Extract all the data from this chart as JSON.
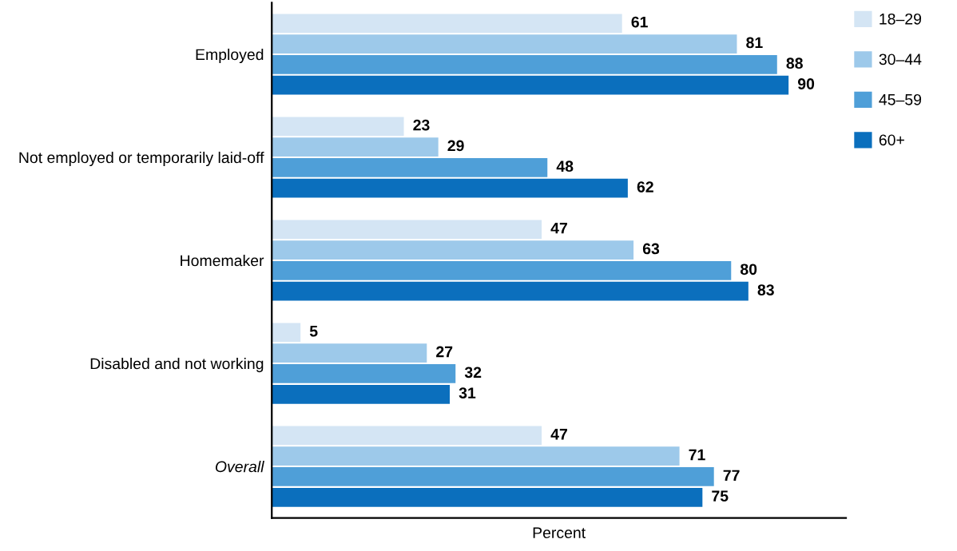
{
  "chart_data": {
    "type": "bar",
    "orientation": "horizontal",
    "xlabel": "Percent",
    "categories": [
      "Employed",
      "Not employed or temporarily laid-off",
      "Homemaker",
      "Disabled and not working",
      "Overall"
    ],
    "series": [
      {
        "name": "18–29",
        "color": "#d4e5f4",
        "values": [
          61,
          23,
          47,
          5,
          47
        ]
      },
      {
        "name": "30–44",
        "color": "#9dc9ea",
        "values": [
          81,
          29,
          63,
          27,
          71
        ]
      },
      {
        "name": "45–59",
        "color": "#4f9fd8",
        "values": [
          88,
          48,
          80,
          32,
          77
        ]
      },
      {
        "name": "60+",
        "color": "#0b6fbd",
        "values": [
          90,
          62,
          83,
          31,
          75
        ]
      }
    ],
    "xlim": [
      0,
      100
    ],
    "data_labels": true,
    "legend": "right",
    "tick_labels": "y",
    "grid": false
  }
}
